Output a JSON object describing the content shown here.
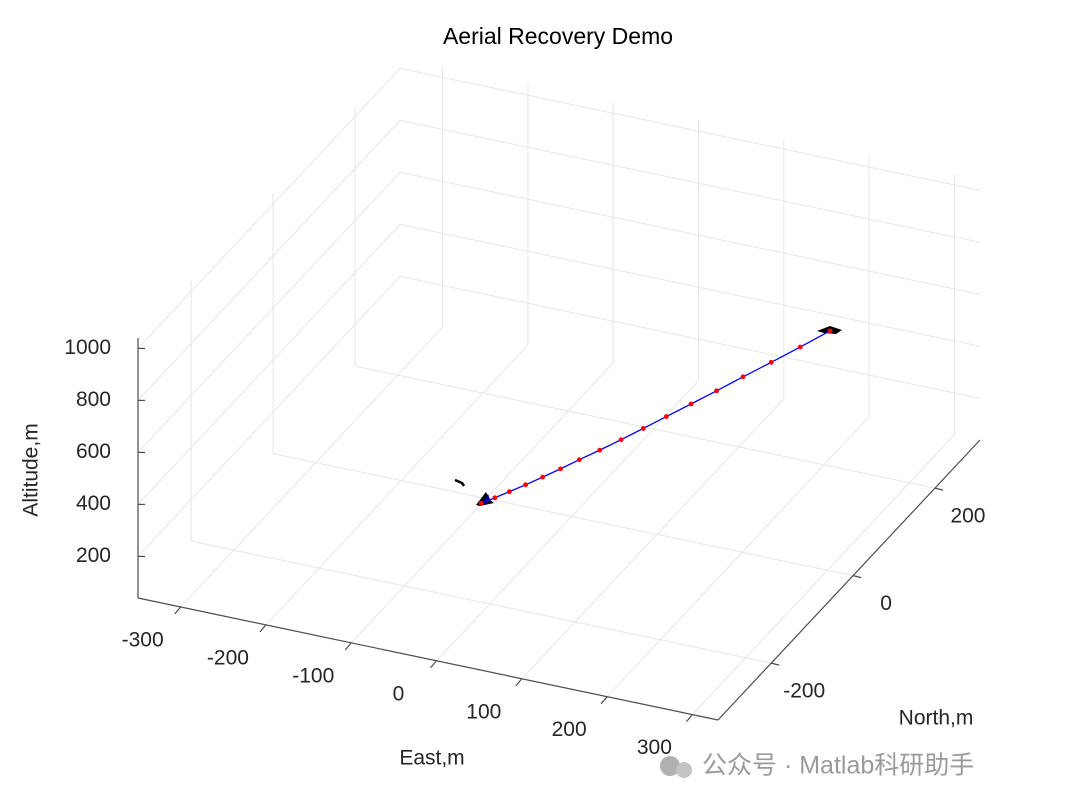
{
  "chart_data": {
    "type": "line3d",
    "title": "Aerial Recovery Demo",
    "xlabel": "East,m",
    "ylabel": "North,m",
    "zlabel": "Altitude,m",
    "xlim": [
      -350,
      330
    ],
    "ylim": [
      -330,
      310
    ],
    "zlim": [
      40,
      1040
    ],
    "xticks": [
      -300,
      -200,
      -100,
      0,
      100,
      200,
      300
    ],
    "yticks": [
      -200,
      0,
      200
    ],
    "zticks": [
      200,
      400,
      600,
      800,
      1000
    ],
    "grid": true,
    "series": [
      {
        "color": "#0000ff",
        "marker_color": "#ff0000",
        "x": [
          -10,
          -6,
          -1,
          6,
          14,
          23,
          33,
          45,
          58,
          72,
          87,
          104,
          122,
          141,
          162,
          184,
          207
        ],
        "y": [
          -200,
          -175,
          -150,
          -125,
          -100,
          -75,
          -50,
          -25,
          0,
          25,
          50,
          75,
          100,
          125,
          150,
          175,
          200
        ],
        "z": [
          420,
          402,
          387,
          376,
          369,
          365,
          365,
          368,
          375,
          386,
          400,
          418,
          439,
          464,
          492,
          524,
          560
        ]
      }
    ],
    "watermark": "公众号 · Matlab科研助手"
  }
}
